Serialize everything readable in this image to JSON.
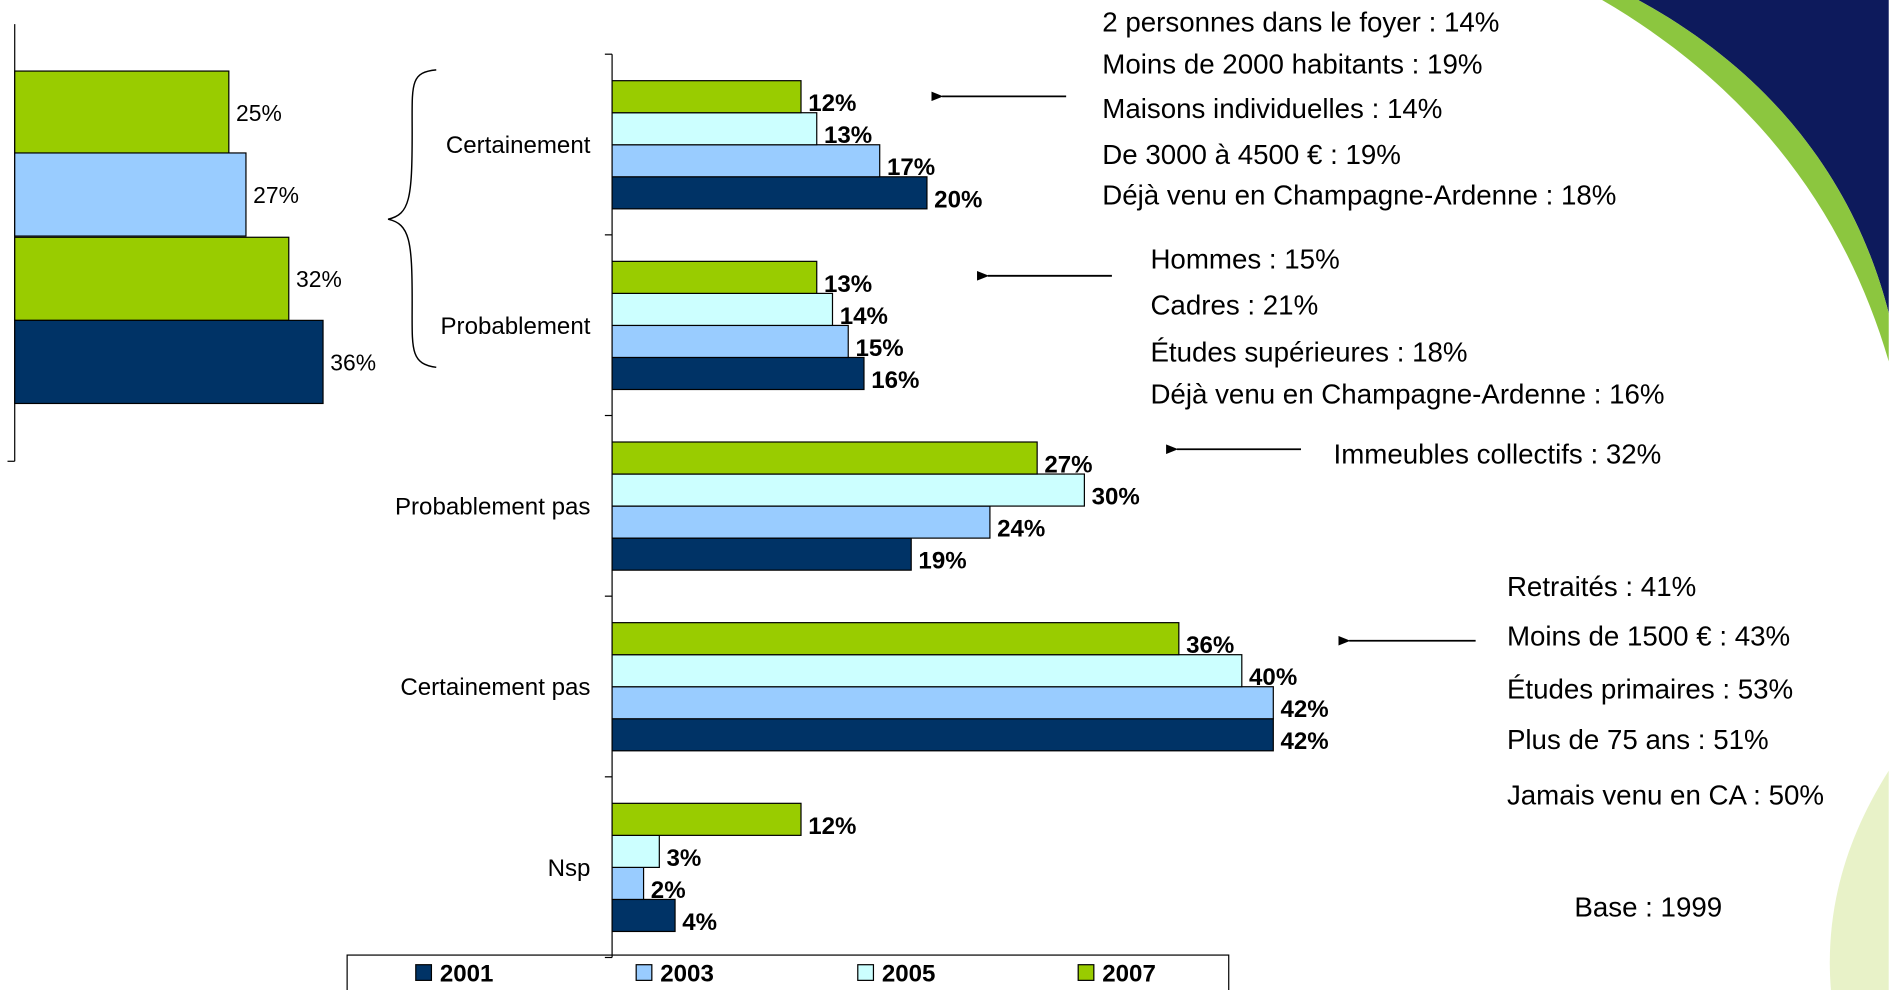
{
  "chart_data": [
    {
      "type": "bar",
      "orientation": "horizontal",
      "values": [
        25,
        27,
        32,
        36
      ],
      "value_labels": [
        "25%",
        "27%",
        "32%",
        "36%"
      ],
      "colors": [
        "#99cc00",
        "#99ccff",
        "#99cc00",
        "#003366"
      ]
    },
    {
      "type": "bar",
      "orientation": "horizontal",
      "categories": [
        "Certainement",
        "Probablement",
        "Probablement pas",
        "Certainement pas",
        "Nsp"
      ],
      "series": [
        {
          "name": "2001",
          "color": "#003366",
          "values": [
            20,
            16,
            19,
            42,
            4
          ],
          "value_labels": [
            "20%",
            "16%",
            "19%",
            "42%",
            "4%"
          ]
        },
        {
          "name": "2003",
          "color": "#99ccff",
          "values": [
            17,
            15,
            24,
            42,
            2
          ],
          "value_labels": [
            "17%",
            "15%",
            "24%",
            "42%",
            "2%"
          ]
        },
        {
          "name": "2005",
          "color": "#ccffff",
          "values": [
            13,
            14,
            30,
            40,
            3
          ],
          "value_labels": [
            "13%",
            "14%",
            "30%",
            "40%",
            "3%"
          ]
        },
        {
          "name": "2007",
          "color": "#99cc00",
          "values": [
            12,
            13,
            27,
            36,
            12
          ],
          "value_labels": [
            "12%",
            "13%",
            "27%",
            "36%",
            "12%"
          ]
        }
      ],
      "legend": "bottom",
      "annotations": [
        {
          "lines": [
            "2 personnes dans le foyer : 14%",
            "Moins de 2000 habitants : 19%",
            "Maisons individuelles : 14%",
            "De 3000 à 4500 € : 19%",
            "Déjà venu en Champagne-Ardenne : 18%"
          ]
        },
        {
          "lines": [
            "Hommes : 15%",
            "Cadres : 21%",
            "Études supérieures : 18%",
            "Déjà venu en Champagne-Ardenne : 16%"
          ]
        },
        {
          "lines": [
            "Immeubles collectifs : 32%"
          ]
        },
        {
          "lines": [
            "Retraités : 41%",
            "Moins de 1500 € : 43%",
            "Études primaires : 53%",
            "Plus de 75 ans : 51%",
            "Jamais venu en CA : 50%"
          ]
        }
      ],
      "note": "Base : 1999"
    }
  ]
}
